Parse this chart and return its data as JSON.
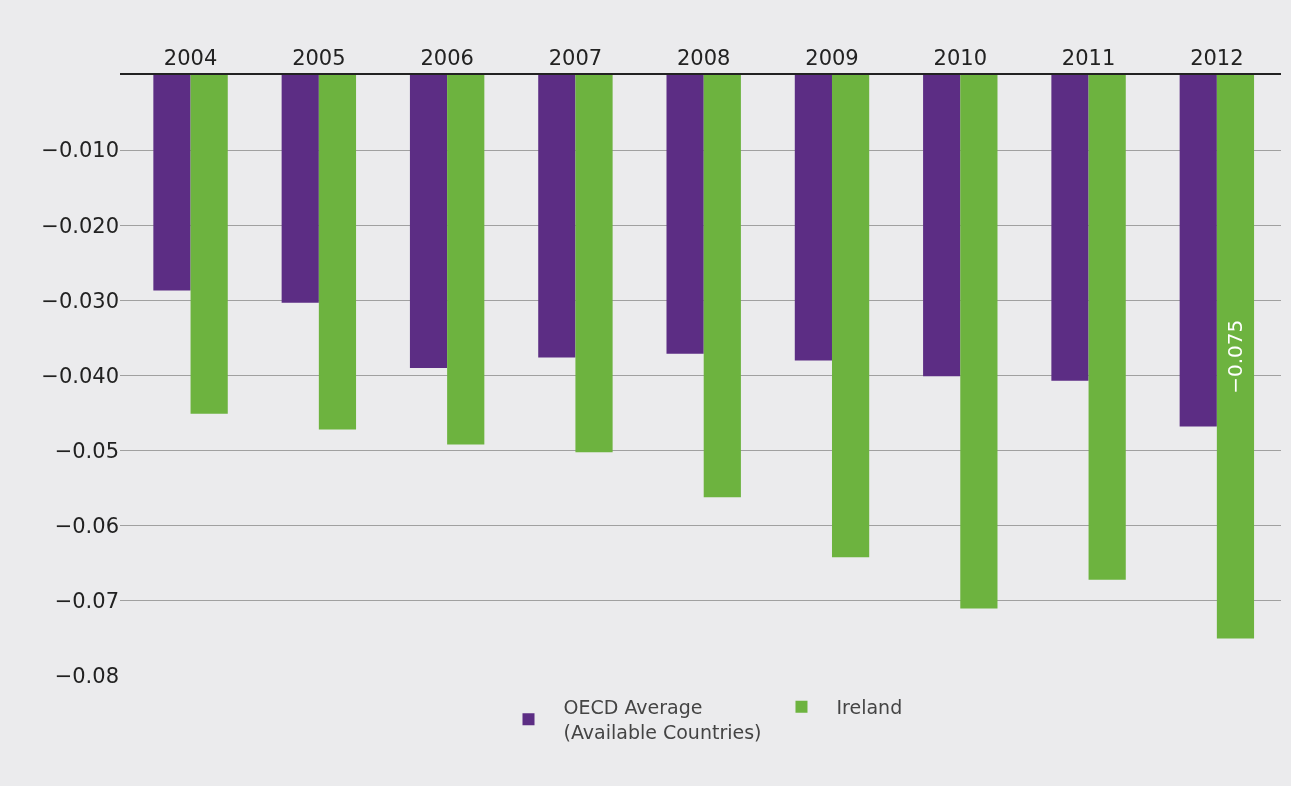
{
  "chart_data": {
    "type": "bar",
    "categories": [
      "2004",
      "2005",
      "2006",
      "2007",
      "2008",
      "2009",
      "2010",
      "2011",
      "2012"
    ],
    "series": [
      {
        "name": "OECD Average (Available Countries)",
        "color": "#5c2d84",
        "values": [
          -0.0287,
          -0.0303,
          -0.039,
          -0.0376,
          -0.0371,
          -0.038,
          -0.0401,
          -0.0407,
          -0.0468
        ]
      },
      {
        "name": "Ireland",
        "color": "#6db33f",
        "values": [
          -0.0451,
          -0.0472,
          -0.0492,
          -0.0502,
          -0.0562,
          -0.0642,
          -0.071,
          -0.0672,
          -0.075
        ],
        "value_labels": [
          null,
          null,
          null,
          null,
          null,
          null,
          null,
          null,
          "−0.075"
        ]
      }
    ],
    "ylim": [
      -0.08,
      0
    ],
    "yticks": [
      {
        "value": -0.01,
        "label": "−0.010"
      },
      {
        "value": -0.02,
        "label": "−0.020"
      },
      {
        "value": -0.03,
        "label": "−0.030"
      },
      {
        "value": -0.04,
        "label": "−0.040"
      },
      {
        "value": -0.05,
        "label": "−0.05"
      },
      {
        "value": -0.06,
        "label": "−0.06"
      },
      {
        "value": -0.07,
        "label": "−0.07"
      },
      {
        "value": -0.08,
        "label": "−0.08"
      }
    ],
    "grid": "y",
    "legend": "bottom"
  }
}
